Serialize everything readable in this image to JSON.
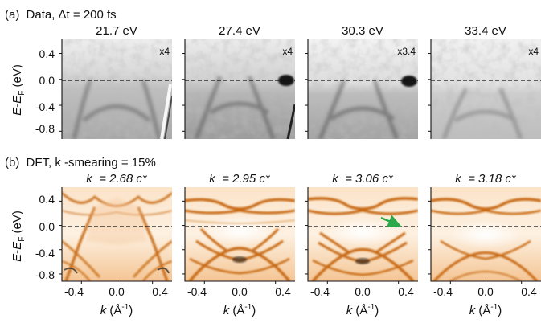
{
  "panel_a": {
    "label": "(a)",
    "title": "Data, Δt = 200 fs",
    "columns": [
      {
        "energy": "21.7 eV",
        "scale": "x4"
      },
      {
        "energy": "27.4 eV",
        "scale": "x4"
      },
      {
        "energy": "30.3 eV",
        "scale": "x3.4"
      },
      {
        "energy": "33.4 eV",
        "scale": "x4"
      }
    ]
  },
  "panel_b": {
    "label": "(b)",
    "title": "DFT, k -smearing = 15%",
    "columns": [
      {
        "k_label": "k  = 2.68 c*"
      },
      {
        "k_label": "k  = 2.95 c*"
      },
      {
        "k_label": "k  = 3.06 c*"
      },
      {
        "k_label": "k  = 3.18 c*"
      }
    ]
  },
  "y_axis": {
    "label": "E-EF (eV)",
    "ticks": [
      "0.4",
      "0.0",
      "-0.4",
      "-0.8"
    ],
    "tick_values": [
      0.4,
      0.0,
      -0.4,
      -0.8
    ],
    "range": [
      -0.92,
      0.63
    ]
  },
  "x_axis": {
    "label": "k (Å-1)",
    "ticks": [
      "-0.4",
      "0.0",
      "0.4"
    ],
    "tick_values": [
      -0.4,
      0.0,
      0.4
    ],
    "range": [
      -0.62,
      0.62
    ]
  },
  "colors": {
    "data_gray": "#8c8c8c",
    "dft_orange": "#c86b14",
    "arrow": "#2aa84a"
  }
}
